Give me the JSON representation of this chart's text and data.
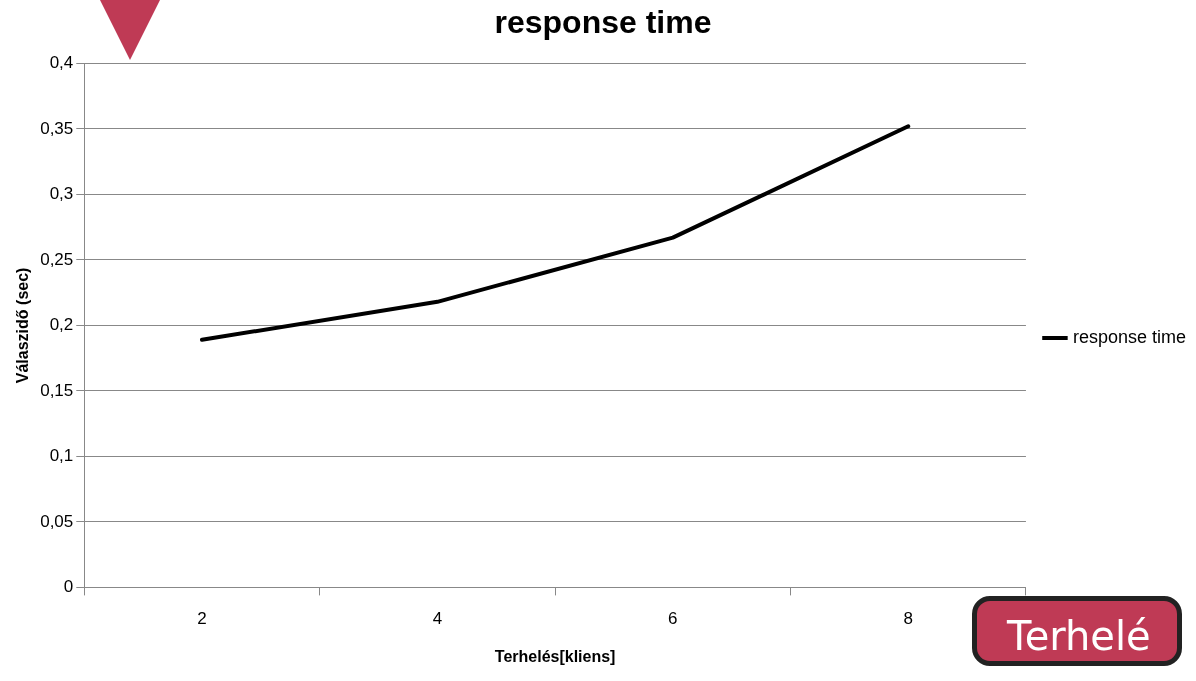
{
  "chart_data": {
    "type": "line",
    "title": "response time",
    "xlabel": "Terhelés[kliens]",
    "ylabel": "Válaszidő (sec)",
    "categories": [
      "2",
      "4",
      "6",
      "8"
    ],
    "series": [
      {
        "name": "response time",
        "color": "#000000",
        "values": [
          0.189,
          0.218,
          0.267,
          0.352
        ]
      }
    ],
    "ylim": [
      0,
      0.4
    ],
    "yticks": [
      0,
      {
        "value": 0.05,
        "label": "0,05"
      },
      {
        "value": 0.1,
        "label": "0,1"
      },
      {
        "value": 0.15,
        "label": "0,15"
      },
      {
        "value": 0.2,
        "label": "0,2"
      },
      {
        "value": 0.25,
        "label": "0,25"
      },
      {
        "value": 0.3,
        "label": "0,3"
      },
      {
        "value": 0.35,
        "label": "0,35"
      },
      {
        "value": 0.4,
        "label": "0,4"
      }
    ],
    "grid": "y",
    "legend": "right",
    "marker": "none",
    "line_style": "solid",
    "annotations": [
      "Terhelé"
    ]
  }
}
